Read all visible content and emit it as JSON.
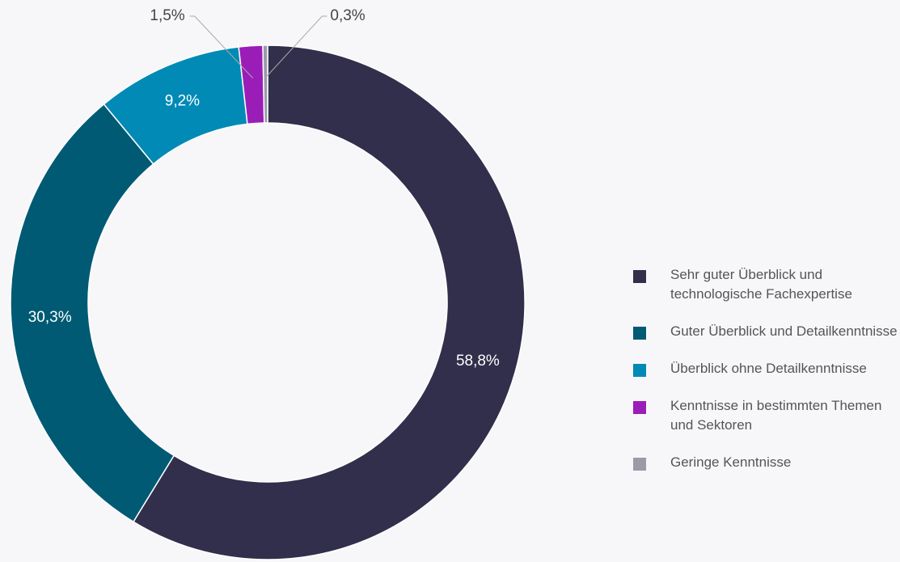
{
  "chart_data": {
    "type": "donut",
    "categories": [
      "Sehr guter Überblick und technologische Fachexpertise",
      "Guter Überblick und Detailkenntnisse",
      "Überblick ohne Detailkenntnisse",
      "Kenntnisse in bestimmten Themen und Sektoren",
      "Geringe Kenntnisse"
    ],
    "values": [
      58.8,
      30.3,
      9.2,
      1.5,
      0.3
    ],
    "value_labels": [
      "58,8%",
      "30,3%",
      "9,2%",
      "1,5%",
      "0,3%"
    ],
    "colors": [
      "#312f4b",
      "#005a74",
      "#008ab5",
      "#9b1db8",
      "#9a9aaa"
    ],
    "legend": "right"
  }
}
